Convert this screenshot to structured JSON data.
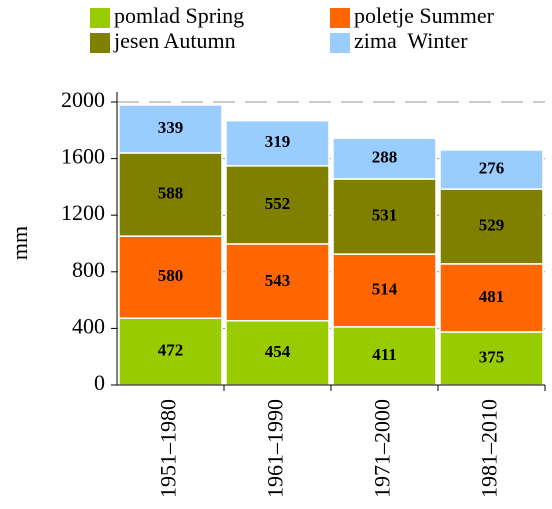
{
  "chart_data": {
    "type": "stacked_bar",
    "y_label": "mm",
    "categories": [
      "1951–1980",
      "1961–1990",
      "1971–2000",
      "1981–2010"
    ],
    "series": [
      {
        "name": "pomlad Spring",
        "color": "#99cc00",
        "values": [
          472,
          454,
          411,
          375
        ]
      },
      {
        "name": "poletje Summer",
        "color": "#ff6600",
        "values": [
          580,
          543,
          514,
          481
        ]
      },
      {
        "name": "jesen Autumn",
        "color": "#808000",
        "values": [
          588,
          552,
          531,
          529
        ]
      },
      {
        "name": "zima  Winter",
        "color": "#99ccff",
        "values": [
          339,
          319,
          288,
          276
        ]
      }
    ],
    "ylim": [
      0,
      2000
    ],
    "yticks": [
      0,
      400,
      800,
      1200,
      1600,
      2000
    ],
    "grid": true
  }
}
